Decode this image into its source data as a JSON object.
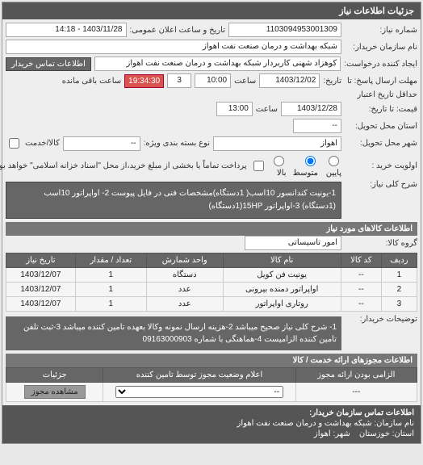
{
  "header": {
    "title": "جزئیات اطلاعات نیاز"
  },
  "form": {
    "req_no_lbl": "شماره نیاز:",
    "req_no": "1103094953001309",
    "pub_time_lbl": "تاریخ و ساعت اعلان عمومی:",
    "pub_time": "1403/11/28 - 14:18",
    "buyer_org_lbl": "نام سازمان خریدار:",
    "buyer_org": "شبکه بهداشت و درمان صنعت نفت اهواز",
    "requester_lbl": "ایجاد کننده درخواست:",
    "requester": "کوهزاد شهنی کاربردار شبکه بهداشت و درمان صنعت نفت اهواز",
    "contact_btn": "اطلاعات تماس خریدار",
    "deadline_to_lbl": "مهلت ارسال پاسخ: تا",
    "deadline_date_lbl": "تاریخ:",
    "deadline_date": "1403/12/02",
    "time_lbl": "ساعت",
    "deadline_time": "10:00",
    "countdown_days": "3",
    "countdown_time": "19:34:30",
    "countdown_suffix": "ساعت باقی مانده",
    "validity_lbl": "حداقل تاریخ اعتبار",
    "validity_to_lbl": "قیمت: تا تاریخ:",
    "validity_date": "1403/12/28",
    "validity_time": "13:00",
    "delivery_province_lbl": "استان محل تحویل:",
    "delivery_province": "--",
    "delivery_city_lbl": "شهر محل تحویل:",
    "delivery_city": "اهواز",
    "package_lbl": "نوع بسته بندی ویژه:",
    "package": "--",
    "shipping_lbl": "کالا/خدمت",
    "priority_lbl": "اولویت خرید :",
    "priority_low": "پایین",
    "priority_mid": "متوسط",
    "priority_high": "بالا",
    "payment_note": "پرداخت تماماً یا بخشی از مبلغ خرید،از محل \"اسناد خزانه اسلامی\" خواهد بود.",
    "desc_lbl": "شرح کلی نیاز:",
    "desc": "1-یونیت کندانسور 10اسب( 1دستگاه)مشخصات فنی در فایل پیوست 2- اواپراتور 10اسب (1دستگاه) 3-اواپراتور 15HP(1دستگاه)"
  },
  "goods": {
    "section": "اطلاعات کالاهای مورد نیاز",
    "group_lbl": "گروه کالا:",
    "group": "امور تاسیساتی",
    "columns": [
      "ردیف",
      "کد کالا",
      "نام کالا",
      "واحد شمارش",
      "تعداد / مقدار",
      "تاریخ نیاز"
    ],
    "rows": [
      [
        "1",
        "--",
        "یونیت فن کویل",
        "دستگاه",
        "1",
        "1403/12/07"
      ],
      [
        "2",
        "--",
        "اواپراتور دمنده بیرونی",
        "عدد",
        "1",
        "1403/12/07"
      ],
      [
        "3",
        "--",
        "روتاری اواپراتور",
        "عدد",
        "1",
        "1403/12/07"
      ]
    ]
  },
  "notes": {
    "lbl": "توضیحات خریدار:",
    "text": "1- شرح کلی نیاز صحیح میباشد 2-هزینه ارسال نمونه وکالا بعهده تامین کننده میباشد 3-ثبت تلفن تامین کننده الزامیست 4-هماهنگی با شماره 09163000903"
  },
  "permits": {
    "section": "اطلاعات مجوزهای ارائه خدمت / کالا",
    "columns": [
      "الزامی بودن ارائه مجوز",
      "اعلام وضعیت مجوز توسط تامین کننده",
      "جزئیات"
    ],
    "row": [
      "---",
      "--",
      "مشاهده مجوز"
    ]
  },
  "footer": {
    "section": "اطلاعات تماس سازمان خریدار:",
    "org_lbl": "نام سازمان:",
    "org": "شبکه بهداشت و درمان صنعت نفت اهواز",
    "province_lbl": "استان:",
    "province": "خوزستان",
    "city_lbl": "شهر:",
    "city": "اهواز"
  },
  "colors": {
    "header_bg": "#555555",
    "orange": "#d9534f",
    "gray_btn": "#666666"
  }
}
